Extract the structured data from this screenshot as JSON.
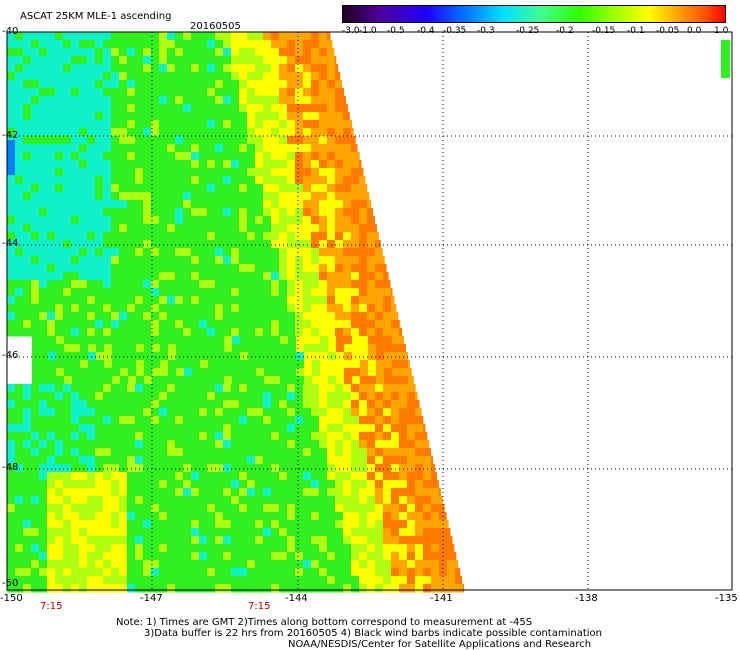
{
  "header": {
    "title": "ASCAT 25KM MLE-1 ascending",
    "date": "20160505"
  },
  "colorbar": {
    "labels": [
      "-3.0",
      "-1.0",
      "-0.5",
      "-0.4",
      "-0.35",
      "-0.3",
      "-0.25",
      "-0.2",
      "-0.15",
      "-0.1",
      "-0.05",
      "0.0",
      "1.0"
    ],
    "colors": [
      "#1a0020",
      "#5a00a0",
      "#2a1cff",
      "#0060ff",
      "#00a8ff",
      "#00ffff",
      "#40ff80",
      "#30ff00",
      "#a0ff00",
      "#ffff00",
      "#ffb000",
      "#ff7000",
      "#ff1000"
    ]
  },
  "axes": {
    "lat_labels": [
      "-40",
      "-42",
      "-44",
      "-46",
      "-48",
      "-50"
    ],
    "lon_labels": [
      "-150",
      "-147",
      "-144",
      "-141",
      "-138",
      "-135"
    ]
  },
  "time_labels": [
    "7:15",
    "7:15"
  ],
  "notes": [
    "Note: 1) Times are GMT 2)Times along bottom correspond to measurement at -45S",
    "3)Data buffer is 22 hrs from 20160505 4) Black wind barbs indicate possible contamination",
    "NOAA/NESDIS/Center for Satellite Applications and Research"
  ],
  "palette": {
    "cyan": "#10f0c8",
    "green": "#30f020",
    "yellowgreen": "#b0ff10",
    "yellow": "#ffff00",
    "orange": "#ffa500",
    "deep_orange": "#ff7a00",
    "grid": "#000000"
  }
}
